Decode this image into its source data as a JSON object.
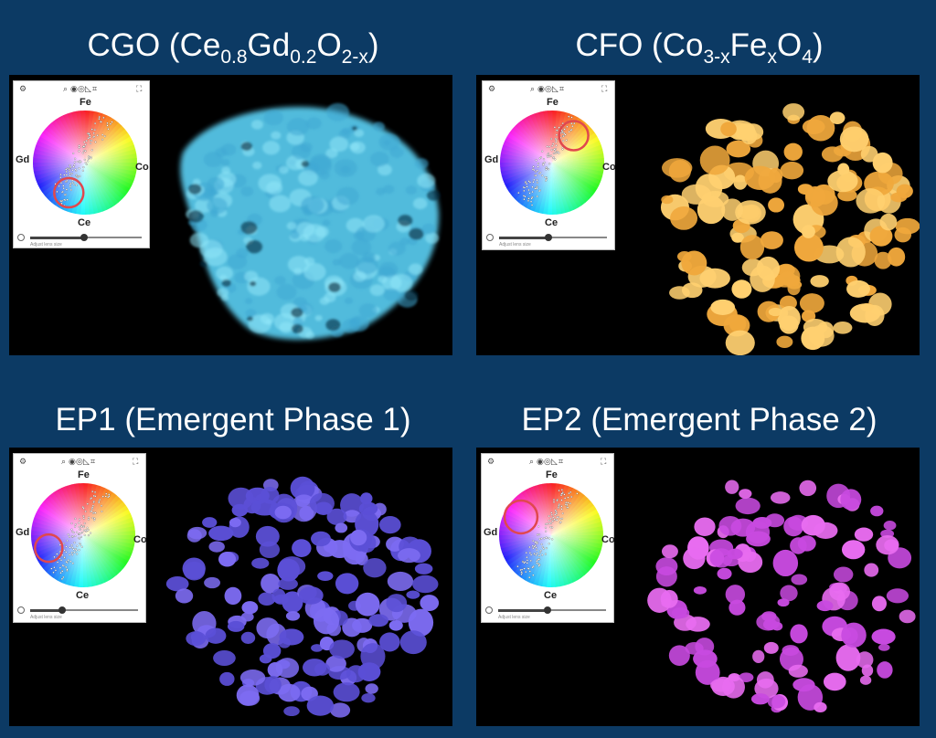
{
  "panels": [
    {
      "id": "cgo",
      "title_main": "CGO (Ce",
      "title_subs": [
        "0.8",
        "0.2",
        "2-x"
      ],
      "title_parts": [
        "Gd",
        "O",
        ")"
      ],
      "color": "#5fd3ee",
      "elements": {
        "top": "Fe",
        "left": "Gd",
        "right": "Co",
        "bottom": "Ce"
      },
      "hint": "Adjust lens size"
    },
    {
      "id": "cfo",
      "title_main": "CFO (Co",
      "title_subs": [
        "3-x",
        "x",
        "4"
      ],
      "title_parts": [
        "Fe",
        "O",
        ")"
      ],
      "color": "#f2b64a",
      "elements": {
        "top": "Fe",
        "left": "Gd",
        "right": "Co",
        "bottom": "Ce"
      },
      "hint": "Adjust lens size"
    },
    {
      "id": "ep1",
      "title": "EP1 (Emergent Phase 1)",
      "color": "#6a5ce8",
      "elements": {
        "top": "Fe",
        "left": "Gd",
        "right": "Co",
        "bottom": "Ce"
      },
      "hint": "Adjust lens size"
    },
    {
      "id": "ep2",
      "title": "EP2 (Emergent Phase 2)",
      "color": "#cf4fe2",
      "elements": {
        "top": "Fe",
        "left": "Gd",
        "right": "Co",
        "bottom": "Ce"
      },
      "hint": "Adjust lens size"
    }
  ],
  "icons": [
    "settings-icon",
    "zoom-icon",
    "palette-icon",
    "eye-icon",
    "chart-icon",
    "crop-icon",
    "fullscreen-icon",
    "reset-icon"
  ],
  "lens_color": "#e0484e",
  "background": "#0c3a64"
}
